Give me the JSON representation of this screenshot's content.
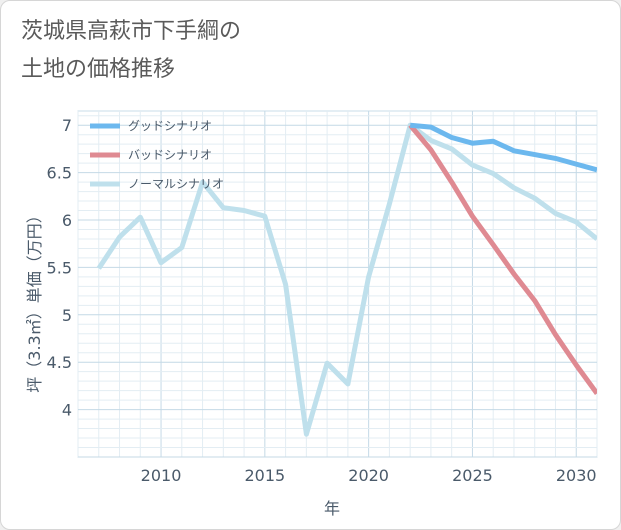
{
  "page": {
    "title_line1": "茨城県高萩市下手綱の",
    "title_line2": "土地の価格推移"
  },
  "chart_data": {
    "type": "line",
    "xlabel": "年",
    "ylabel": "坪（3.3㎡）単価（万円）",
    "xlim": [
      2006,
      2031
    ],
    "ylim": [
      3.5,
      7.15
    ],
    "xticks": [
      2010,
      2015,
      2020,
      2025,
      2030
    ],
    "yticks": [
      4,
      4.5,
      5,
      5.5,
      6,
      6.5,
      7
    ],
    "grid": true,
    "legend_position": "top-left",
    "series": [
      {
        "name": "グッドシナリオ",
        "color": "#6cb8ee",
        "x": [
          2022,
          2023,
          2024,
          2025,
          2026,
          2027,
          2028,
          2029,
          2030,
          2031
        ],
        "values": [
          7.0,
          6.98,
          6.87,
          6.81,
          6.83,
          6.73,
          6.69,
          6.65,
          6.59,
          6.53
        ]
      },
      {
        "name": "バッドシナリオ",
        "color": "#df8a92",
        "x": [
          2022,
          2023,
          2024,
          2025,
          2026,
          2027,
          2028,
          2029,
          2030,
          2031
        ],
        "values": [
          7.0,
          6.74,
          6.4,
          6.04,
          5.74,
          5.43,
          5.15,
          4.79,
          4.47,
          4.17
        ]
      },
      {
        "name": "ノーマルシナリオ",
        "color": "#bfe0ec",
        "x": [
          2007,
          2008,
          2009,
          2010,
          2011,
          2012,
          2013,
          2014,
          2015,
          2016,
          2017,
          2018,
          2019,
          2020,
          2021,
          2022,
          2023,
          2024,
          2025,
          2026,
          2027,
          2028,
          2029,
          2030,
          2031
        ],
        "values": [
          5.49,
          5.82,
          6.03,
          5.55,
          5.71,
          6.4,
          6.13,
          6.1,
          6.04,
          5.32,
          3.74,
          4.49,
          4.27,
          5.4,
          6.17,
          7.0,
          6.84,
          6.75,
          6.58,
          6.49,
          6.34,
          6.23,
          6.07,
          5.98,
          5.8
        ]
      }
    ]
  }
}
